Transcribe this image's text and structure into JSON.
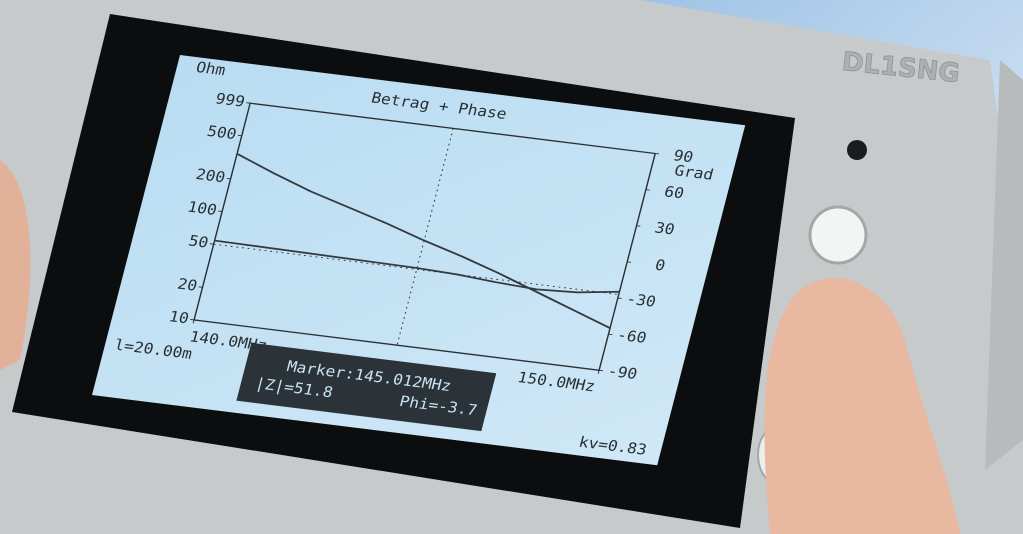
{
  "device_label": "DL1SNG",
  "chart_data": {
    "type": "line",
    "title": "Betrag + Phase",
    "y_label": "Ohm",
    "y2_label": "Grad",
    "x": [
      140,
      141,
      142,
      143,
      144,
      145,
      146,
      147,
      148,
      149,
      150
    ],
    "xlim": [
      140,
      150
    ],
    "xticks": [
      {
        "value": 140,
        "label": "140.0MHz"
      },
      {
        "value": 150,
        "label": "150.0MHz"
      }
    ],
    "ylim": [
      10,
      999
    ],
    "yticks": [
      10,
      20,
      50,
      100,
      200,
      500,
      999
    ],
    "log_y": true,
    "y2lim": [
      -90,
      90
    ],
    "y2ticks": [
      -90,
      -60,
      -30,
      0,
      30,
      60,
      90
    ],
    "series": [
      {
        "color": "#33393d",
        "values": [
          54,
          53.5,
          53,
          52.5,
          52,
          51.5,
          50,
          47,
          45,
          47,
          53
        ]
      },
      {
        "color": "#33393d",
        "axis": "y2",
        "values": [
          48,
          36,
          25,
          16,
          7,
          -3,
          -12,
          -22,
          -33,
          -44,
          -55
        ]
      }
    ],
    "reference_line": 50,
    "marker_x": 145.012,
    "marker_label": "Marker:145.012MHz",
    "marker_z": "|Z|=51.8",
    "marker_phi": "Phi=-3.7",
    "length_label": "l=20.00m",
    "kv_label": "kv=0.83"
  }
}
